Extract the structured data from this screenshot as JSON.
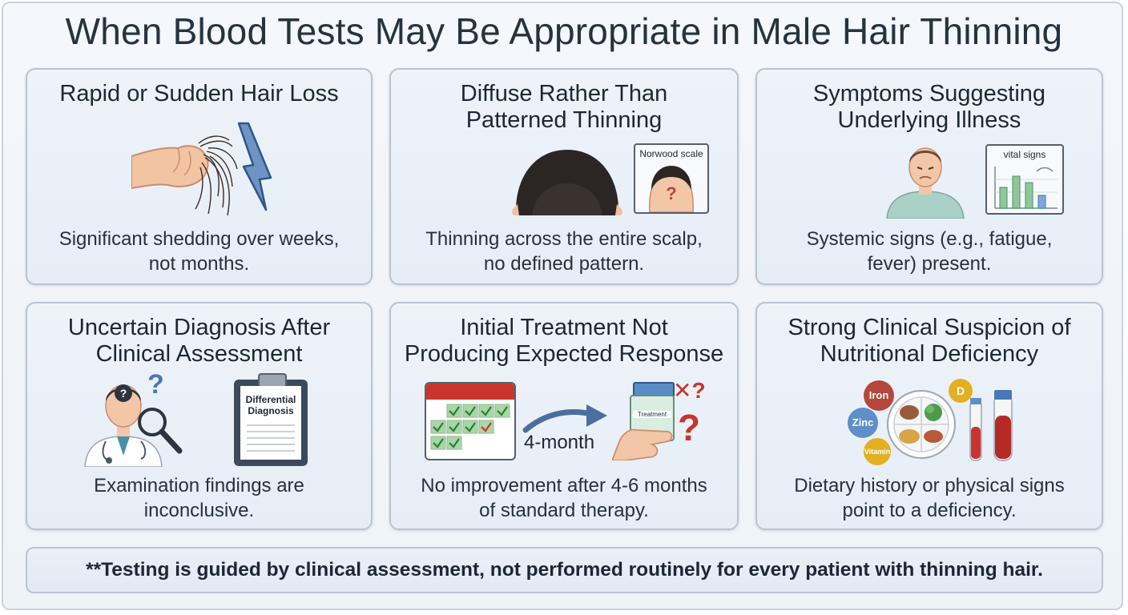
{
  "title": "When Blood Tests May Be Appropriate in Male Hair Thinning",
  "cards": [
    {
      "title": "Rapid or Sudden Hair Loss",
      "description": "Significant shedding over weeks,\nnot months."
    },
    {
      "title": "Diffuse Rather Than\nPatterned Thinning",
      "description": "Thinning across the entire scalp,\nno defined pattern.",
      "inset_label": "Norwood scale",
      "inset_mark": "?"
    },
    {
      "title": "Symptoms Suggesting\nUnderlying Illness",
      "description": "Systemic signs (e.g., fatigue,\nfever) present.",
      "inset_label": "vital signs"
    },
    {
      "title": "Uncertain Diagnosis After\nClinical Assessment",
      "description": "Examination findings are\ninconclusive.",
      "clipboard_label": "Differential\nDiagnosis",
      "question_mark": "?"
    },
    {
      "title": "Initial Treatment Not\nProducing Expected Response",
      "description": "No improvement after 4-6 months\nof standard therapy.",
      "arrow_label": "4-month",
      "bottle_label": "Treatment",
      "marks": [
        "✕?",
        "?"
      ]
    },
    {
      "title": "Strong Clinical Suspicion of\nNutritional Deficiency",
      "description": "Dietary history or physical signs\npoint to a deficiency.",
      "nutrients": [
        "Iron",
        "Zinc",
        "D",
        "Vitamin D"
      ]
    }
  ],
  "footer": "**Testing is guided by clinical assessment, not performed routinely for every patient with thinning hair.",
  "colors": {
    "card_border": "#b9c4cf",
    "accent_blue": "#4a78b5",
    "check_green": "#3f9a4a",
    "alert_red": "#c8352e",
    "iron_red": "#b5463a",
    "zinc_blue": "#5e8fc9",
    "vitamin_gold": "#e2b020"
  }
}
